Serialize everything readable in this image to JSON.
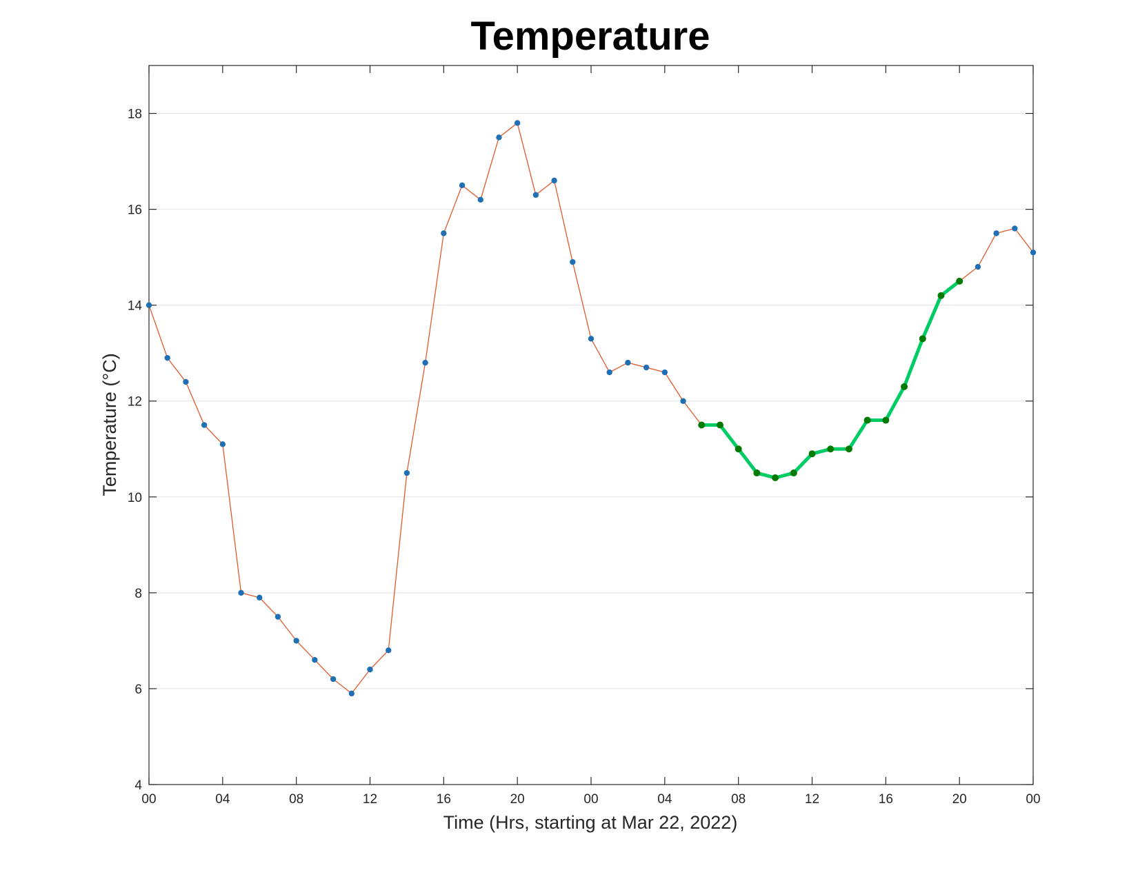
{
  "chart_data": {
    "type": "line",
    "title": "Temperature",
    "xlabel": "Time (Hrs, starting at Mar 22, 2022)",
    "ylabel": "Temperature (°C)",
    "xlim": [
      0,
      48
    ],
    "ylim": [
      4,
      19
    ],
    "x_ticks": [
      0,
      4,
      8,
      12,
      16,
      20,
      24,
      28,
      32,
      36,
      40,
      44,
      48
    ],
    "x_tick_labels": [
      "00",
      "04",
      "08",
      "12",
      "16",
      "20",
      "00",
      "04",
      "08",
      "12",
      "16",
      "20",
      "00"
    ],
    "y_ticks": [
      4,
      6,
      8,
      10,
      12,
      14,
      16,
      18
    ],
    "y_tick_labels": [
      "4",
      "6",
      "8",
      "10",
      "12",
      "14",
      "16",
      "18"
    ],
    "grid": "horizontal",
    "series": [
      {
        "color": "#e05a2b",
        "marker_color": "#1f6fb4",
        "x": [
          0,
          1,
          2,
          3,
          4,
          5,
          6,
          7,
          8,
          9,
          10,
          11,
          12,
          13,
          14,
          15,
          16,
          17,
          18,
          19,
          20,
          21,
          22,
          23,
          24,
          25,
          26,
          27,
          28,
          29,
          30,
          31,
          32,
          33,
          34,
          35,
          36,
          37,
          38,
          39,
          40,
          41,
          42,
          43,
          44,
          45,
          46,
          47,
          48
        ],
        "y": [
          14.0,
          12.9,
          12.4,
          11.5,
          11.1,
          8.0,
          7.9,
          7.5,
          7.0,
          6.6,
          6.2,
          5.9,
          6.4,
          6.8,
          10.5,
          12.8,
          15.5,
          16.5,
          16.2,
          17.5,
          17.8,
          16.3,
          16.6,
          14.9,
          13.3,
          12.6,
          12.8,
          12.7,
          12.6,
          12.0,
          11.5,
          11.5,
          11.0,
          10.5,
          10.4,
          10.5,
          10.9,
          11.0,
          11.0,
          11.6,
          11.6,
          12.3,
          13.3,
          14.2,
          14.5,
          14.8,
          15.5,
          15.6,
          15.1
        ]
      },
      {
        "color": "#00cc66",
        "marker_color": "#007a00",
        "x": [
          30,
          31,
          32,
          33,
          34,
          35,
          36,
          37,
          38,
          39,
          40,
          41,
          42,
          43,
          44
        ],
        "y": [
          11.5,
          11.5,
          11.0,
          10.5,
          10.4,
          10.5,
          10.9,
          11.0,
          11.0,
          11.6,
          11.6,
          12.3,
          13.3,
          14.2,
          14.5
        ]
      }
    ]
  }
}
